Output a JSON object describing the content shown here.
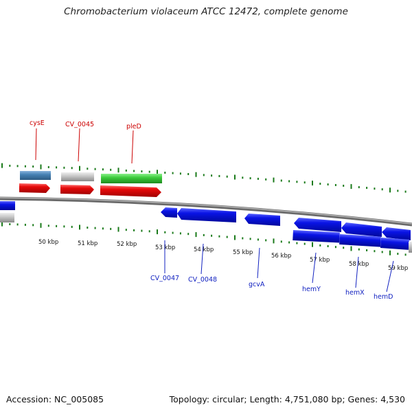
{
  "title": "Chromobacterium violaceum ATCC 12472, complete genome",
  "footer": {
    "accession": "Accession: NC_005085",
    "topology": "Topology: circular; Length: 4,751,080 bp; Genes: 4,530"
  },
  "colors": {
    "cds_blue": "#0a14e6",
    "gene_red": "#e60a0a",
    "backbone": "#909090",
    "tick_green": "#1a7a1a",
    "label_red": "#cc0000",
    "label_blue": "#1020c0",
    "steelblue": "#4682b4",
    "lightgray": "#c8c8c8",
    "green": "#3ccc3c"
  },
  "kbp_ticks": [
    {
      "label": "50 kbp"
    },
    {
      "label": "51 kbp"
    },
    {
      "label": "52 kbp"
    },
    {
      "label": "53 kbp"
    },
    {
      "label": "54 kbp"
    },
    {
      "label": "55 kbp"
    },
    {
      "label": "56 kbp"
    },
    {
      "label": "57 kbp"
    },
    {
      "label": "58 kbp"
    },
    {
      "label": "59 kbp"
    }
  ],
  "forward_genes": [
    {
      "name": "cysE"
    },
    {
      "name": "CV_0045"
    },
    {
      "name": "pleD"
    }
  ],
  "reverse_genes": [
    {
      "name": "CV_0047"
    },
    {
      "name": "CV_0048"
    },
    {
      "name": "gcvA"
    },
    {
      "name": "hemY"
    },
    {
      "name": "hemX"
    },
    {
      "name": "hemD"
    }
  ]
}
